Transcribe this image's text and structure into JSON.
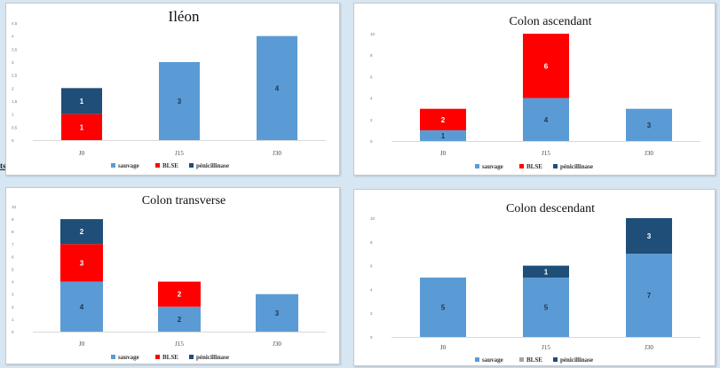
{
  "stray_text": "ts",
  "legend_labels": [
    "sauvage",
    "BLSE",
    "pénicillinase"
  ],
  "colors": {
    "sauvage": "#5b9bd5",
    "BLSE": "#ff0000",
    "penicillinase": "#1f4e79",
    "BLSE_grey": "#a5a5a5"
  },
  "chart_data": [
    {
      "type": "bar",
      "stacked": true,
      "title": "Iléon",
      "categories": [
        "J0",
        "J15",
        "J30"
      ],
      "ylim": [
        0,
        4.5
      ],
      "ticks": [
        "0",
        "0,5",
        "1",
        "1,5",
        "2",
        "2,5",
        "3",
        "3,5",
        "4",
        "4,5"
      ],
      "legend_position": "bottom",
      "grid": false,
      "series": [
        {
          "name": "sauvage",
          "values": [
            0,
            3,
            4
          ]
        },
        {
          "name": "BLSE",
          "values": [
            1,
            0,
            0
          ]
        },
        {
          "name": "pénicillinase",
          "values": [
            1,
            0,
            0
          ]
        }
      ]
    },
    {
      "type": "bar",
      "stacked": true,
      "title": "Colon ascendant",
      "categories": [
        "J0",
        "J15",
        "J30"
      ],
      "ylim": [
        0,
        10
      ],
      "ticks": [
        "0",
        "2",
        "4",
        "6",
        "8",
        "10"
      ],
      "legend_position": "bottom",
      "grid": false,
      "series": [
        {
          "name": "sauvage",
          "values": [
            1,
            4,
            3
          ]
        },
        {
          "name": "BLSE",
          "values": [
            2,
            6,
            0
          ]
        },
        {
          "name": "pénicillinase",
          "values": [
            0,
            0,
            0
          ]
        }
      ]
    },
    {
      "type": "bar",
      "stacked": true,
      "title": "Colon transverse",
      "categories": [
        "J0",
        "J15",
        "J30"
      ],
      "ylim": [
        0,
        10
      ],
      "ticks": [
        "0",
        "1",
        "2",
        "3",
        "4",
        "5",
        "6",
        "7",
        "8",
        "9",
        "10"
      ],
      "legend_position": "bottom",
      "grid": false,
      "series": [
        {
          "name": "sauvage",
          "values": [
            4,
            2,
            3
          ]
        },
        {
          "name": "BLSE",
          "values": [
            3,
            2,
            0
          ]
        },
        {
          "name": "pénicillinase",
          "values": [
            2,
            0,
            0
          ]
        }
      ]
    },
    {
      "type": "bar",
      "stacked": true,
      "title": "Colon descendant",
      "categories": [
        "J0",
        "J15",
        "J30"
      ],
      "ylim": [
        0,
        10
      ],
      "ticks": [
        "0",
        "2",
        "4",
        "6",
        "8",
        "10"
      ],
      "legend_position": "bottom",
      "grid": false,
      "series": [
        {
          "name": "sauvage",
          "values": [
            5,
            5,
            7
          ]
        },
        {
          "name": "BLSE",
          "values": [
            0,
            0,
            0
          ]
        },
        {
          "name": "pénicillinase",
          "values": [
            0,
            1,
            3
          ]
        }
      ]
    }
  ]
}
